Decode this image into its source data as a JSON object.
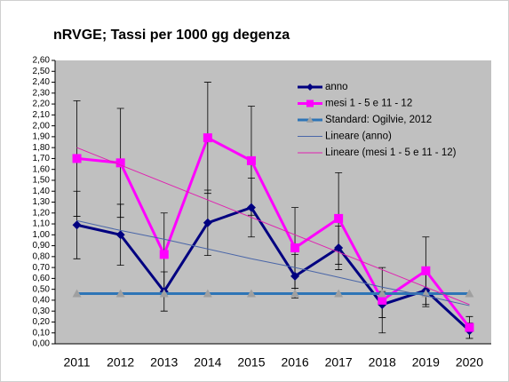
{
  "chart_data": {
    "type": "line",
    "title": "nRVGE; Tassi per 1000 gg degenza",
    "categories": [
      "2011",
      "2012",
      "2013",
      "2014",
      "2015",
      "2016",
      "2017",
      "2018",
      "2019",
      "2020"
    ],
    "series": [
      {
        "name": "anno",
        "color": "#000080",
        "marker": "diamond",
        "width": 3,
        "values": [
          1.09,
          1.0,
          0.48,
          1.11,
          1.25,
          0.62,
          0.88,
          0.36,
          0.49,
          0.12
        ],
        "errors": [
          0.31,
          0.28,
          0.18,
          0.3,
          0.27,
          0.2,
          0.2,
          0.12,
          0.15,
          0.07
        ]
      },
      {
        "name": "mesi 1 - 5 e 11 - 12",
        "color": "#ff00ff",
        "marker": "square",
        "width": 3,
        "values": [
          1.7,
          1.66,
          0.82,
          1.89,
          1.68,
          0.88,
          1.15,
          0.4,
          0.67,
          0.15
        ],
        "errors": [
          0.53,
          0.5,
          0.38,
          0.51,
          0.5,
          0.37,
          0.42,
          0.3,
          0.31,
          0.1
        ]
      },
      {
        "name": "Standard: Ogilvie, 2012",
        "color": "#2e75b6",
        "marker": "triangle",
        "marker_color": "#a0a0a0",
        "width": 3,
        "values": [
          0.46,
          0.46,
          0.46,
          0.46,
          0.46,
          0.46,
          0.46,
          0.46,
          0.46,
          0.46
        ]
      },
      {
        "name": "Lineare (anno)",
        "color": "#4a66a8",
        "marker": "none",
        "width": 1,
        "values": [
          1.13,
          1.04,
          0.96,
          0.87,
          0.78,
          0.7,
          0.61,
          0.52,
          0.44,
          0.35
        ]
      },
      {
        "name": "Lineare (mesi 1 - 5 e 11 - 12)",
        "color": "#e020b0",
        "marker": "none",
        "width": 1,
        "values": [
          1.8,
          1.64,
          1.48,
          1.32,
          1.16,
          1.0,
          0.84,
          0.68,
          0.52,
          0.36
        ]
      }
    ],
    "ylim": [
      0,
      2.6
    ],
    "yticks": [
      {
        "value": 0,
        "label": "0,00"
      },
      {
        "value": 0.1,
        "label": "0,10"
      },
      {
        "value": 0.2,
        "label": "0,20"
      },
      {
        "value": 0.3,
        "label": "0,30"
      },
      {
        "value": 0.4,
        "label": "0,40"
      },
      {
        "value": 0.5,
        "label": "0,50"
      },
      {
        "value": 0.6,
        "label": "0,60"
      },
      {
        "value": 0.7,
        "label": "0,70"
      },
      {
        "value": 0.8,
        "label": "0,80"
      },
      {
        "value": 0.9,
        "label": "0,90"
      },
      {
        "value": 1.0,
        "label": "1,00"
      },
      {
        "value": 1.1,
        "label": "1,10"
      },
      {
        "value": 1.2,
        "label": "1,20"
      },
      {
        "value": 1.3,
        "label": "1,30"
      },
      {
        "value": 1.4,
        "label": "1,40"
      },
      {
        "value": 1.5,
        "label": "1,50"
      },
      {
        "value": 1.6,
        "label": "1,60"
      },
      {
        "value": 1.7,
        "label": "1,70"
      },
      {
        "value": 1.8,
        "label": "1,80"
      },
      {
        "value": 1.9,
        "label": "1,90"
      },
      {
        "value": 2.0,
        "label": "2,00"
      },
      {
        "value": 2.1,
        "label": "2,10"
      },
      {
        "value": 2.2,
        "label": "2,20"
      },
      {
        "value": 2.3,
        "label": "2,30"
      },
      {
        "value": 2.4,
        "label": "2,40"
      },
      {
        "value": 2.5,
        "label": "2,50"
      },
      {
        "value": 2.6,
        "label": "2,60"
      }
    ],
    "grid": false,
    "plot_background": "#c0c0c0",
    "legend": "top-right"
  }
}
